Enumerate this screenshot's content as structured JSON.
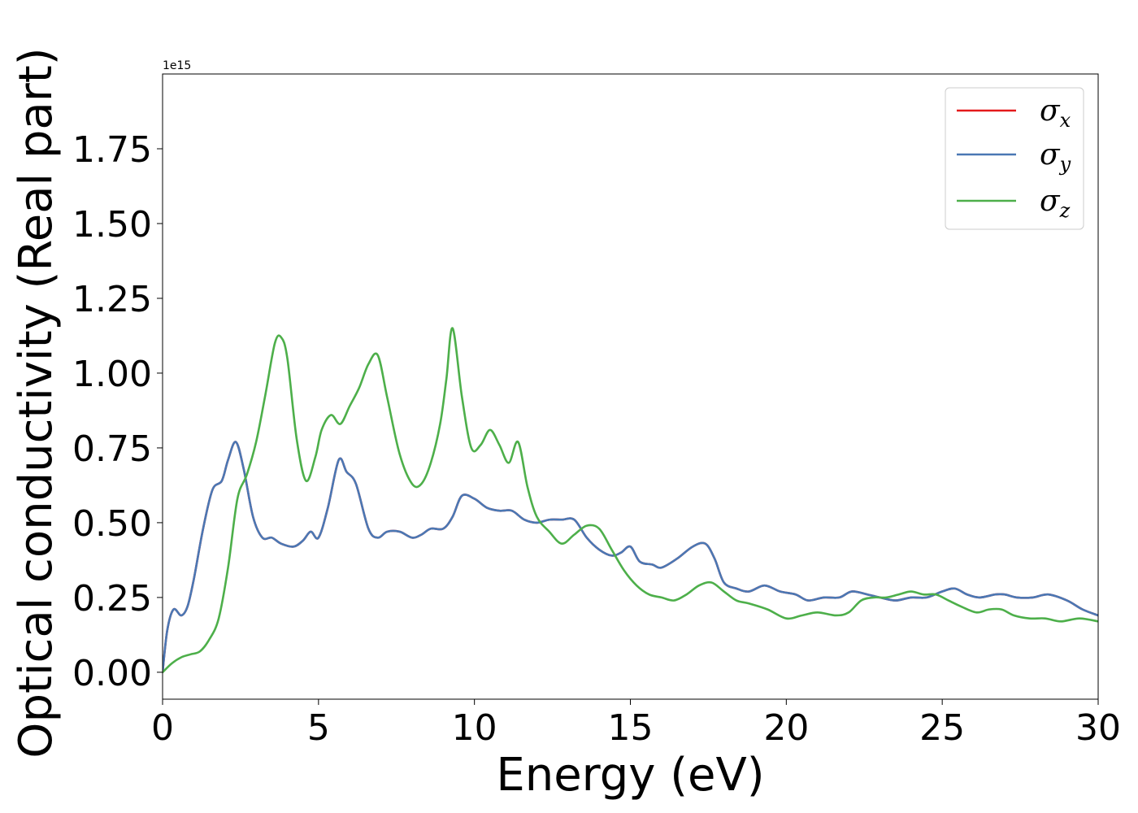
{
  "chart_data": {
    "type": "line",
    "title": "",
    "xlabel": "Energy (eV)",
    "ylabel": "Optical conductivity (Real part)",
    "y_offset_label": "1e15",
    "y_multiplier": 1000000000000000.0,
    "xlim": [
      0,
      30
    ],
    "ylim": [
      -0.09,
      2.0
    ],
    "x_ticks": [
      0,
      5,
      10,
      15,
      20,
      25,
      30
    ],
    "x_tick_labels": [
      "0",
      "5",
      "10",
      "15",
      "20",
      "25",
      "30"
    ],
    "y_ticks": [
      0,
      0.25,
      0.5,
      0.75,
      1.0,
      1.25,
      1.5,
      1.75
    ],
    "y_tick_labels": [
      "0.00",
      "0.25",
      "0.50",
      "0.75",
      "1.00",
      "1.25",
      "1.50",
      "1.75"
    ],
    "grid": false,
    "legend_position": "top-right",
    "series": [
      {
        "name": "σ_x",
        "legend_symbol": "σ",
        "legend_sub": "x",
        "color": "#e41a1c",
        "x": [
          0,
          0.15,
          0.35,
          0.6,
          0.8,
          1.0,
          1.3,
          1.6,
          1.9,
          2.1,
          2.35,
          2.6,
          2.9,
          3.2,
          3.5,
          3.8,
          4.2,
          4.5,
          4.75,
          5.0,
          5.3,
          5.65,
          5.9,
          6.2,
          6.6,
          6.9,
          7.2,
          7.6,
          8.0,
          8.3,
          8.6,
          9.0,
          9.3,
          9.6,
          10.0,
          10.4,
          10.8,
          11.2,
          11.6,
          12.0,
          12.4,
          12.8,
          13.2,
          13.6,
          14.0,
          14.4,
          14.7,
          15.0,
          15.3,
          15.7,
          16.0,
          16.5,
          17.0,
          17.4,
          17.7,
          18.0,
          18.4,
          18.8,
          19.3,
          19.8,
          20.3,
          20.7,
          21.2,
          21.7,
          22.1,
          22.6,
          23.0,
          23.5,
          24.0,
          24.5,
          25.0,
          25.4,
          25.8,
          26.2,
          26.7,
          27.0,
          27.4,
          27.9,
          28.4,
          29.0,
          29.5,
          30.0
        ],
        "y": [
          0,
          0.14,
          0.21,
          0.19,
          0.22,
          0.31,
          0.48,
          0.61,
          0.64,
          0.71,
          0.77,
          0.68,
          0.52,
          0.45,
          0.45,
          0.43,
          0.42,
          0.44,
          0.47,
          0.45,
          0.55,
          0.71,
          0.67,
          0.63,
          0.48,
          0.45,
          0.47,
          0.47,
          0.45,
          0.46,
          0.48,
          0.48,
          0.52,
          0.59,
          0.58,
          0.55,
          0.54,
          0.54,
          0.51,
          0.5,
          0.51,
          0.51,
          0.51,
          0.45,
          0.41,
          0.39,
          0.4,
          0.42,
          0.37,
          0.36,
          0.35,
          0.38,
          0.42,
          0.43,
          0.38,
          0.3,
          0.28,
          0.27,
          0.29,
          0.27,
          0.26,
          0.24,
          0.25,
          0.25,
          0.27,
          0.26,
          0.25,
          0.24,
          0.25,
          0.25,
          0.27,
          0.28,
          0.26,
          0.25,
          0.26,
          0.26,
          0.25,
          0.25,
          0.26,
          0.24,
          0.21,
          0.19
        ]
      },
      {
        "name": "σ_y",
        "legend_symbol": "σ",
        "legend_sub": "y",
        "color": "#4a78b4",
        "x": [
          0,
          0.15,
          0.35,
          0.6,
          0.8,
          1.0,
          1.3,
          1.6,
          1.9,
          2.1,
          2.35,
          2.6,
          2.9,
          3.2,
          3.5,
          3.8,
          4.2,
          4.5,
          4.75,
          5.0,
          5.3,
          5.65,
          5.9,
          6.2,
          6.6,
          6.9,
          7.2,
          7.6,
          8.0,
          8.3,
          8.6,
          9.0,
          9.3,
          9.6,
          10.0,
          10.4,
          10.8,
          11.2,
          11.6,
          12.0,
          12.4,
          12.8,
          13.2,
          13.6,
          14.0,
          14.4,
          14.7,
          15.0,
          15.3,
          15.7,
          16.0,
          16.5,
          17.0,
          17.4,
          17.7,
          18.0,
          18.4,
          18.8,
          19.3,
          19.8,
          20.3,
          20.7,
          21.2,
          21.7,
          22.1,
          22.6,
          23.0,
          23.5,
          24.0,
          24.5,
          25.0,
          25.4,
          25.8,
          26.2,
          26.7,
          27.0,
          27.4,
          27.9,
          28.4,
          29.0,
          29.5,
          30.0
        ],
        "y": [
          0,
          0.14,
          0.21,
          0.19,
          0.22,
          0.31,
          0.48,
          0.61,
          0.64,
          0.71,
          0.77,
          0.68,
          0.52,
          0.45,
          0.45,
          0.43,
          0.42,
          0.44,
          0.47,
          0.45,
          0.55,
          0.71,
          0.67,
          0.63,
          0.48,
          0.45,
          0.47,
          0.47,
          0.45,
          0.46,
          0.48,
          0.48,
          0.52,
          0.59,
          0.58,
          0.55,
          0.54,
          0.54,
          0.51,
          0.5,
          0.51,
          0.51,
          0.51,
          0.45,
          0.41,
          0.39,
          0.4,
          0.42,
          0.37,
          0.36,
          0.35,
          0.38,
          0.42,
          0.43,
          0.38,
          0.3,
          0.28,
          0.27,
          0.29,
          0.27,
          0.26,
          0.24,
          0.25,
          0.25,
          0.27,
          0.26,
          0.25,
          0.24,
          0.25,
          0.25,
          0.27,
          0.28,
          0.26,
          0.25,
          0.26,
          0.26,
          0.25,
          0.25,
          0.26,
          0.24,
          0.21,
          0.19
        ]
      },
      {
        "name": "σ_z",
        "legend_symbol": "σ",
        "legend_sub": "z",
        "color": "#4daf4a",
        "x": [
          0,
          0.3,
          0.6,
          0.9,
          1.2,
          1.5,
          1.8,
          2.1,
          2.4,
          2.7,
          3.0,
          3.3,
          3.6,
          3.8,
          4.0,
          4.3,
          4.6,
          4.9,
          5.1,
          5.4,
          5.7,
          6.0,
          6.3,
          6.6,
          6.9,
          7.2,
          7.6,
          8.0,
          8.3,
          8.6,
          8.9,
          9.1,
          9.3,
          9.6,
          9.9,
          10.2,
          10.5,
          10.8,
          11.1,
          11.4,
          11.7,
          12.0,
          12.4,
          12.8,
          13.2,
          13.6,
          14.0,
          14.4,
          14.8,
          15.2,
          15.6,
          16.0,
          16.4,
          16.8,
          17.2,
          17.6,
          18.0,
          18.4,
          18.8,
          19.4,
          20.0,
          20.5,
          21.0,
          21.6,
          22.0,
          22.4,
          22.8,
          23.2,
          23.6,
          24.0,
          24.4,
          24.8,
          25.2,
          25.6,
          26.1,
          26.5,
          26.9,
          27.3,
          27.8,
          28.3,
          28.8,
          29.4,
          30.0
        ],
        "y": [
          0,
          0.03,
          0.05,
          0.06,
          0.07,
          0.11,
          0.18,
          0.35,
          0.58,
          0.66,
          0.77,
          0.93,
          1.1,
          1.12,
          1.05,
          0.78,
          0.64,
          0.72,
          0.81,
          0.86,
          0.83,
          0.89,
          0.95,
          1.03,
          1.06,
          0.92,
          0.73,
          0.63,
          0.63,
          0.7,
          0.83,
          0.98,
          1.15,
          0.92,
          0.75,
          0.76,
          0.81,
          0.76,
          0.7,
          0.77,
          0.62,
          0.52,
          0.47,
          0.43,
          0.46,
          0.49,
          0.48,
          0.41,
          0.34,
          0.29,
          0.26,
          0.25,
          0.24,
          0.26,
          0.29,
          0.3,
          0.27,
          0.24,
          0.23,
          0.21,
          0.18,
          0.19,
          0.2,
          0.19,
          0.2,
          0.24,
          0.25,
          0.25,
          0.26,
          0.27,
          0.26,
          0.26,
          0.24,
          0.22,
          0.2,
          0.21,
          0.21,
          0.19,
          0.18,
          0.18,
          0.17,
          0.18,
          0.17
        ]
      }
    ]
  }
}
